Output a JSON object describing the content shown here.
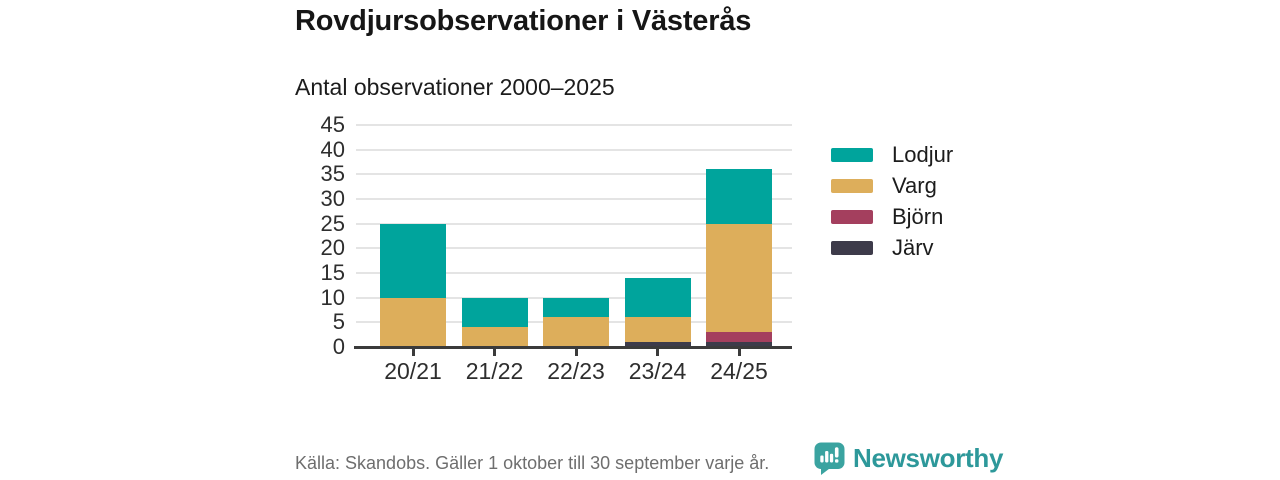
{
  "chart_data": {
    "type": "bar",
    "stacked": true,
    "title": "Rovdjursobservationer i Västerås",
    "subtitle": "Antal observationer 2000–2025",
    "categories": [
      "20/21",
      "21/22",
      "22/23",
      "23/24",
      "24/25"
    ],
    "series": [
      {
        "name": "Lodjur",
        "color": "#00a49c",
        "values": [
          15,
          6,
          4,
          8,
          11
        ]
      },
      {
        "name": "Varg",
        "color": "#ddae5b",
        "values": [
          10,
          4,
          6,
          5,
          22
        ]
      },
      {
        "name": "Björn",
        "color": "#a43f5e",
        "values": [
          0,
          0,
          0,
          0,
          2
        ]
      },
      {
        "name": "Järv",
        "color": "#3d3b4a",
        "values": [
          0,
          0,
          0,
          1,
          1
        ]
      }
    ],
    "stack_order_bottom_to_top": [
      "Järv",
      "Björn",
      "Varg",
      "Lodjur"
    ],
    "stack_totals": [
      25,
      10,
      10,
      14,
      36
    ],
    "ylim": [
      0,
      45
    ],
    "ytick_step": 5,
    "grid": "horizontal",
    "legend_position": "right"
  },
  "footer": {
    "source": "Källa: Skandobs. Gäller 1 oktober till 30 september varje år.",
    "brand": "Newsworthy"
  },
  "colors": {
    "axis": "#3b3b3b",
    "gridline": "#e4e4e4",
    "brand_teal": "#2d989a"
  }
}
